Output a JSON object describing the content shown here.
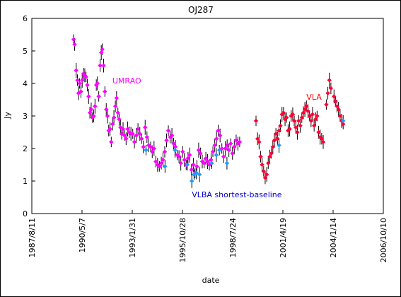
{
  "chart_data": {
    "type": "scatter",
    "title": "OJ287",
    "xlabel": "date",
    "ylabel": "Jy",
    "xlim": [
      "1987/8/11",
      "2006/10/10"
    ],
    "ylim": [
      0,
      6
    ],
    "grid": false,
    "x_ticks": [
      "1987/8/11",
      "1990/5/7",
      "1993/1/31",
      "1995/10/28",
      "1998/7/24",
      "2001/4/19",
      "2004/1/14",
      "2006/10/10"
    ],
    "y_ticks": [
      "0",
      "1",
      "2",
      "3",
      "4",
      "5",
      "6"
    ],
    "annotations": [
      {
        "text": "UMRAO",
        "color": "#ff00ff",
        "x": "1992/1/1",
        "y": 4.0
      },
      {
        "text": "VLA",
        "color": "#ff0000",
        "x": "2002/8/1",
        "y": 3.5
      },
      {
        "text": "VLBA shortest-baseline",
        "color": "#0000cc",
        "x": "1996/5/1",
        "y": 0.5
      }
    ],
    "series": [
      {
        "name": "UMRAO",
        "color": "#ff00ff",
        "marker": "diamond",
        "points": [
          [
            "1989/11/20",
            5.35
          ],
          [
            "1989/12/10",
            5.2
          ],
          [
            "1990/1/10",
            4.4
          ],
          [
            "1990/2/5",
            4.1
          ],
          [
            "1990/2/25",
            3.7
          ],
          [
            "1990/3/20",
            4.0
          ],
          [
            "1990/4/15",
            3.75
          ],
          [
            "1990/5/10",
            4.1
          ],
          [
            "1990/6/5",
            4.3
          ],
          [
            "1990/7/1",
            4.25
          ],
          [
            "1990/7/25",
            4.2
          ],
          [
            "1990/8/20",
            3.95
          ],
          [
            "1990/9/15",
            3.6
          ],
          [
            "1990/10/10",
            3.1
          ],
          [
            "1990/11/5",
            3.2
          ],
          [
            "1990/12/1",
            2.95
          ],
          [
            "1990/12/25",
            3.0
          ],
          [
            "1991/1/20",
            3.3
          ],
          [
            "1991/2/15",
            3.95
          ],
          [
            "1991/3/10",
            4.0
          ],
          [
            "1991/4/5",
            3.6
          ],
          [
            "1991/5/1",
            4.55
          ],
          [
            "1991/5/25",
            4.95
          ],
          [
            "1991/6/15",
            5.05
          ],
          [
            "1991/7/10",
            4.55
          ],
          [
            "1991/8/5",
            3.75
          ],
          [
            "1991/9/1",
            3.2
          ],
          [
            "1991/9/25",
            3.0
          ],
          [
            "1991/10/20",
            2.55
          ],
          [
            "1991/11/15",
            2.6
          ],
          [
            "1991/12/10",
            2.2
          ],
          [
            "1992/1/5",
            2.75
          ],
          [
            "1992/2/1",
            2.95
          ],
          [
            "1992/3/1",
            3.3
          ],
          [
            "1992/3/25",
            3.55
          ],
          [
            "1992/4/20",
            3.1
          ],
          [
            "1992/5/15",
            2.9
          ],
          [
            "1992/6/10",
            2.65
          ],
          [
            "1992/7/5",
            2.45
          ],
          [
            "1992/8/1",
            2.6
          ],
          [
            "1992/9/1",
            2.4
          ],
          [
            "1992/10/1",
            2.3
          ],
          [
            "1992/11/1",
            2.6
          ],
          [
            "1992/12/1",
            2.5
          ],
          [
            "1993/1/5",
            2.45
          ],
          [
            "1993/2/10",
            2.45
          ],
          [
            "1993/3/15",
            2.2
          ],
          [
            "1993/4/20",
            2.4
          ],
          [
            "1993/5/25",
            2.6
          ],
          [
            "1993/7/1",
            2.45
          ],
          [
            "1993/8/5",
            2.3
          ],
          [
            "1993/9/10",
            2.05
          ],
          [
            "1993/10/15",
            2.65
          ],
          [
            "1993/11/20",
            2.35
          ],
          [
            "1993/12/25",
            2.1
          ],
          [
            "1994/2/1",
            2.05
          ],
          [
            "1994/3/5",
            1.9
          ],
          [
            "1994/4/10",
            2.0
          ],
          [
            "1994/5/15",
            1.6
          ],
          [
            "1994/6/20",
            1.5
          ],
          [
            "1994/7/25",
            1.45
          ],
          [
            "1994/9/1",
            1.55
          ],
          [
            "1994/10/5",
            1.65
          ],
          [
            "1994/11/10",
            1.9
          ],
          [
            "1994/12/15",
            2.25
          ],
          [
            "1995/1/20",
            2.55
          ],
          [
            "1995/2/25",
            2.35
          ],
          [
            "1995/4/1",
            2.4
          ],
          [
            "1995/5/5",
            2.15
          ],
          [
            "1995/6/10",
            2.05
          ],
          [
            "1995/7/15",
            1.8
          ],
          [
            "1995/8/20",
            1.75
          ],
          [
            "1995/9/25",
            1.55
          ],
          [
            "1995/11/1",
            1.9
          ],
          [
            "1995/12/5",
            1.65
          ],
          [
            "1996/1/10",
            1.5
          ],
          [
            "1996/2/15",
            1.7
          ],
          [
            "1996/3/20",
            1.8
          ],
          [
            "1996/4/25",
            1.35
          ],
          [
            "1996/6/1",
            1.5
          ],
          [
            "1996/7/5",
            1.25
          ],
          [
            "1996/8/10",
            1.45
          ],
          [
            "1996/9/15",
            1.95
          ],
          [
            "1996/10/20",
            1.85
          ],
          [
            "1996/11/25",
            1.6
          ],
          [
            "1997/1/1",
            1.55
          ],
          [
            "1997/2/5",
            1.7
          ],
          [
            "1997/3/10",
            1.6
          ],
          [
            "1997/4/15",
            1.5
          ],
          [
            "1997/5/20",
            1.65
          ],
          [
            "1997/6/25",
            1.9
          ],
          [
            "1997/8/1",
            2.1
          ],
          [
            "1997/9/5",
            2.3
          ],
          [
            "1997/10/10",
            2.55
          ],
          [
            "1997/11/15",
            2.4
          ],
          [
            "1997/12/20",
            2.0
          ],
          [
            "1998/1/25",
            1.75
          ],
          [
            "1998/3/1",
            2.0
          ],
          [
            "1998/4/5",
            2.1
          ],
          [
            "1998/5/10",
            1.95
          ],
          [
            "1998/6/15",
            2.15
          ],
          [
            "1998/7/20",
            1.85
          ],
          [
            "1998/8/25",
            2.05
          ],
          [
            "1998/10/1",
            2.25
          ],
          [
            "1998/11/5",
            2.15
          ],
          [
            "1998/12/10",
            2.2
          ]
        ]
      },
      {
        "name": "VLA",
        "color": "#ff0033",
        "marker": "diamond",
        "points": [
          [
            "1999/11/1",
            2.85
          ],
          [
            "1999/12/1",
            2.3
          ],
          [
            "2000/1/1",
            2.2
          ],
          [
            "2000/2/1",
            1.75
          ],
          [
            "2000/3/1",
            1.5
          ],
          [
            "2000/4/1",
            1.3
          ],
          [
            "2000/5/1",
            1.1
          ],
          [
            "2000/6/1",
            1.2
          ],
          [
            "2000/7/1",
            1.55
          ],
          [
            "2000/8/1",
            1.75
          ],
          [
            "2000/9/1",
            1.85
          ],
          [
            "2000/10/1",
            2.05
          ],
          [
            "2000/11/1",
            2.25
          ],
          [
            "2000/12/1",
            2.45
          ],
          [
            "2001/1/1",
            2.3
          ],
          [
            "2001/2/1",
            2.55
          ],
          [
            "2001/3/1",
            2.7
          ],
          [
            "2001/4/1",
            3.05
          ],
          [
            "2001/5/1",
            3.1
          ],
          [
            "2001/6/1",
            2.9
          ],
          [
            "2001/7/1",
            2.95
          ],
          [
            "2001/8/1",
            2.55
          ],
          [
            "2001/9/1",
            2.6
          ],
          [
            "2001/10/1",
            3.0
          ],
          [
            "2001/11/1",
            3.05
          ],
          [
            "2001/12/1",
            2.85
          ],
          [
            "2002/1/1",
            2.65
          ],
          [
            "2002/2/1",
            2.5
          ],
          [
            "2002/3/1",
            2.85
          ],
          [
            "2002/4/1",
            2.7
          ],
          [
            "2002/5/1",
            2.95
          ],
          [
            "2002/6/1",
            3.1
          ],
          [
            "2002/7/1",
            3.2
          ],
          [
            "2002/8/1",
            3.3
          ],
          [
            "2002/9/1",
            3.15
          ],
          [
            "2002/10/1",
            3.0
          ],
          [
            "2002/11/1",
            2.85
          ],
          [
            "2002/12/1",
            3.05
          ],
          [
            "2003/1/1",
            2.7
          ],
          [
            "2003/2/1",
            2.9
          ],
          [
            "2003/3/1",
            3.0
          ],
          [
            "2003/4/1",
            2.5
          ],
          [
            "2003/5/1",
            2.35
          ],
          [
            "2003/6/1",
            2.3
          ],
          [
            "2003/7/1",
            2.2
          ],
          [
            "2003/9/1",
            3.35
          ],
          [
            "2003/10/1",
            3.7
          ],
          [
            "2003/11/1",
            4.1
          ],
          [
            "2003/12/1",
            3.85
          ],
          [
            "2004/2/1",
            3.6
          ],
          [
            "2004/3/1",
            3.45
          ],
          [
            "2004/4/1",
            3.3
          ],
          [
            "2004/5/1",
            3.2
          ],
          [
            "2004/6/1",
            3.0
          ],
          [
            "2004/7/1",
            2.85
          ],
          [
            "2004/8/1",
            2.75
          ]
        ]
      },
      {
        "name": "VLBA shortest-baseline",
        "color": "#1e9bff",
        "marker": "diamond",
        "points": [
          [
            "1993/11/1",
            1.95
          ],
          [
            "1994/11/15",
            1.45
          ],
          [
            "1995/6/1",
            1.95
          ],
          [
            "1996/2/1",
            1.5
          ],
          [
            "1996/5/1",
            1.0
          ],
          [
            "1996/6/15",
            1.2
          ],
          [
            "1996/8/1",
            1.25
          ],
          [
            "1996/10/1",
            1.2
          ],
          [
            "1997/6/1",
            1.55
          ],
          [
            "1997/9/1",
            1.8
          ],
          [
            "1997/11/1",
            1.95
          ],
          [
            "1998/4/1",
            1.55
          ],
          [
            "2001/2/1",
            2.1
          ],
          [
            "2004/8/1",
            2.85
          ]
        ]
      }
    ]
  }
}
